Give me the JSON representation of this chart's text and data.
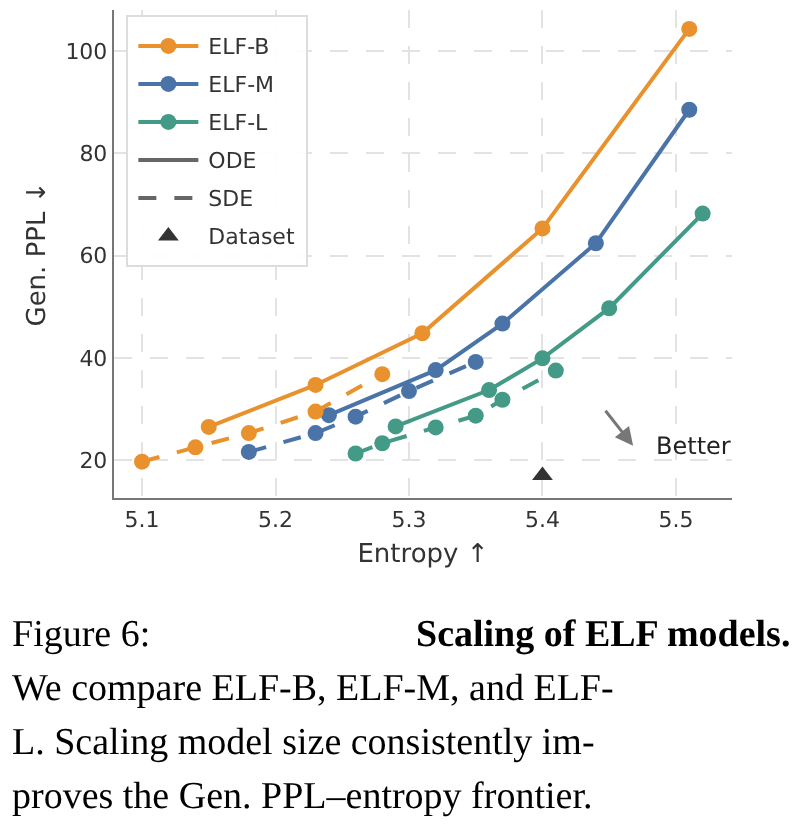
{
  "chart_data": {
    "type": "line",
    "xlabel": "Entropy ↑",
    "ylabel": "Gen. PPL ↓",
    "xlim": [
      5.079,
      5.542
    ],
    "xticks": [
      5.1,
      5.2,
      5.3,
      5.4,
      5.5
    ],
    "ylim": [
      12.6,
      108
    ],
    "yticks": [
      20,
      40,
      60,
      80,
      100
    ],
    "grid": true,
    "legend": "top left",
    "marker": "circle",
    "series": [
      {
        "name": "ELF-B",
        "color": "#e8912d",
        "line_style": "solid",
        "x": [
          5.15,
          5.23,
          5.31,
          5.4,
          5.51
        ],
        "values": [
          26.5,
          34.7,
          44.8,
          65.3,
          104.3
        ]
      },
      {
        "name": "ELF-M",
        "color": "#4a74a8",
        "line_style": "solid",
        "x": [
          5.24,
          5.32,
          5.37,
          5.44,
          5.51
        ],
        "values": [
          28.8,
          37.6,
          46.7,
          62.4,
          88.5
        ]
      },
      {
        "name": "ELF-L",
        "color": "#439a86",
        "line_style": "solid",
        "x": [
          5.29,
          5.36,
          5.4,
          5.45,
          5.52
        ],
        "values": [
          26.6,
          33.7,
          39.9,
          49.7,
          68.2
        ]
      },
      {
        "name": "ODE",
        "color": "#666666",
        "line_style": "solid",
        "marker": "none"
      },
      {
        "name": "SDE",
        "color": "#666666",
        "line_style": "dashed",
        "marker": "none"
      },
      {
        "color": "#e8912d",
        "line_style": "dashed",
        "x": [
          5.1,
          5.14,
          5.18,
          5.23,
          5.28
        ],
        "values": [
          19.7,
          22.5,
          25.3,
          29.5,
          36.8
        ]
      },
      {
        "color": "#4a74a8",
        "line_style": "dashed",
        "x": [
          5.18,
          5.23,
          5.26,
          5.3,
          5.35
        ],
        "values": [
          21.6,
          25.3,
          28.5,
          33.5,
          39.2
        ]
      },
      {
        "color": "#439a86",
        "line_style": "dashed",
        "x": [
          5.26,
          5.28,
          5.32,
          5.35,
          5.37,
          5.41
        ],
        "values": [
          21.3,
          23.3,
          26.4,
          28.7,
          31.8,
          37.5
        ]
      },
      {
        "name": "Dataset",
        "type": "scatter",
        "color": "#333333",
        "marker": "triangle",
        "x": [
          5.4
        ],
        "values": [
          17.0
        ]
      }
    ],
    "annotations": [
      "Better",
      "Figure 6:",
      "Scaling of ELF models.",
      "We compare ELF-B, ELF-M, and ELF-",
      "L. Scaling model size consistently im-",
      "proves the Gen. PPL–entropy frontier."
    ]
  }
}
